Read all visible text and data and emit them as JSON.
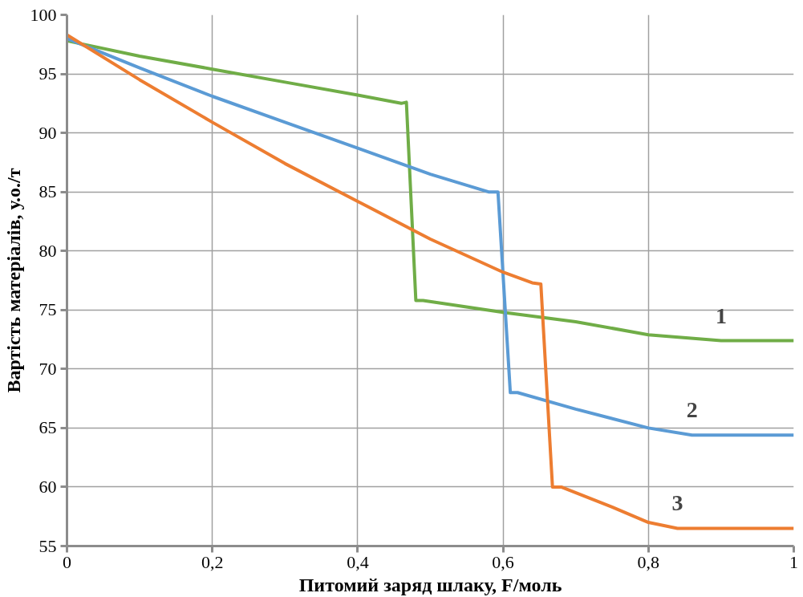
{
  "chart_data": {
    "type": "line",
    "xlabel": "Питомий заряд шлаку, F/моль",
    "ylabel": "Вартість матеріалів, у.о./т",
    "xlim": [
      0,
      1
    ],
    "ylim": [
      55,
      100
    ],
    "xticks": [
      0,
      {
        "value": 0.2,
        "label": "0,2"
      },
      {
        "value": 0.4,
        "label": "0,4"
      },
      {
        "value": 0.6,
        "label": "0,6"
      },
      {
        "value": 0.8,
        "label": "0,8"
      },
      1
    ],
    "yticks": [
      55,
      60,
      65,
      70,
      75,
      80,
      85,
      90,
      95,
      100
    ],
    "grid": true,
    "legend": false,
    "marker": "none",
    "line_style": "solid",
    "series": [
      {
        "name": "1",
        "color": "#70ad47",
        "x": [
          0,
          0.1,
          0.2,
          0.3,
          0.4,
          0.46,
          0.467,
          0.48,
          0.49,
          0.6,
          0.7,
          0.8,
          0.9,
          1
        ],
        "values": [
          97.8,
          96.5,
          95.4,
          94.3,
          93.2,
          92.5,
          92.6,
          75.8,
          75.8,
          74.8,
          74.0,
          72.9,
          72.4,
          72.4
        ]
      },
      {
        "name": "2",
        "color": "#5b9bd5",
        "x": [
          0,
          0.1,
          0.2,
          0.3,
          0.4,
          0.5,
          0.58,
          0.593,
          0.61,
          0.62,
          0.7,
          0.8,
          0.86,
          1
        ],
        "values": [
          98.0,
          95.5,
          93.1,
          90.9,
          88.7,
          86.5,
          85.0,
          85.0,
          68.0,
          68.0,
          66.6,
          65.0,
          64.4,
          64.4
        ]
      },
      {
        "name": "3",
        "color": "#ed7d31",
        "x": [
          0,
          0.1,
          0.2,
          0.3,
          0.4,
          0.5,
          0.6,
          0.64,
          0.652,
          0.668,
          0.68,
          0.75,
          0.8,
          0.84,
          1
        ],
        "values": [
          98.3,
          94.5,
          90.9,
          87.4,
          84.2,
          81.0,
          78.2,
          77.3,
          77.2,
          60.0,
          60.0,
          58.3,
          57.0,
          56.5,
          56.5
        ]
      }
    ]
  }
}
